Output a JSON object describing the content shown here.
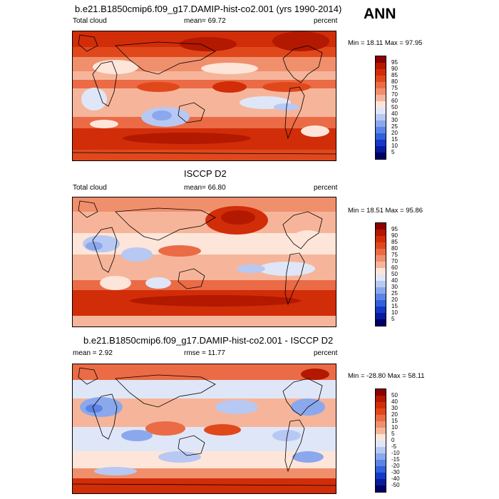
{
  "season": "ANN",
  "panels": [
    {
      "id": "model",
      "title": "b.e21.B1850cmip6.f09_g17.DAMIP-hist-co2.001 (yrs 1990-2014)",
      "left_label": "Total cloud",
      "center_label": "mean=  69.72",
      "right_label": "percent",
      "minmax": "Min =  18.11 Max =  97.95",
      "levels": [
        "95",
        "90",
        "85",
        "80",
        "75",
        "70",
        "60",
        "50",
        "40",
        "30",
        "25",
        "20",
        "15",
        "10",
        "5"
      ],
      "colors": [
        "#8b0000",
        "#b31800",
        "#d12d09",
        "#e0481c",
        "#ea6b45",
        "#f08f6c",
        "#f6b59a",
        "#fde5d9",
        "#dfe6f7",
        "#b7c8f2",
        "#8ba8ec",
        "#5c84e6",
        "#3360dc",
        "#1438c8",
        "#061c9c",
        "#000066"
      ]
    },
    {
      "id": "obs",
      "title": "ISCCP D2",
      "left_label": "Total cloud",
      "center_label": "mean=  66.80",
      "right_label": "percent",
      "minmax": "Min =  18.51 Max =  95.86",
      "levels": [
        "95",
        "90",
        "85",
        "80",
        "75",
        "70",
        "60",
        "50",
        "40",
        "30",
        "25",
        "20",
        "15",
        "10",
        "5"
      ],
      "colors": [
        "#8b0000",
        "#b31800",
        "#d12d09",
        "#e0481c",
        "#ea6b45",
        "#f08f6c",
        "#f6b59a",
        "#fde5d9",
        "#dfe6f7",
        "#b7c8f2",
        "#8ba8ec",
        "#5c84e6",
        "#3360dc",
        "#1438c8",
        "#061c9c",
        "#000066"
      ]
    },
    {
      "id": "diff",
      "title": "b.e21.B1850cmip6.f09_g17.DAMIP-hist-co2.001 - ISCCP D2",
      "left_label": "mean =  2.92",
      "center_label": "rmse =  11.77",
      "right_label": "percent",
      "minmax": "Min = -28.80 Max =  58.11",
      "levels": [
        "50",
        "40",
        "30",
        "20",
        "15",
        "10",
        "5",
        "0",
        "-5",
        "-10",
        "-15",
        "-20",
        "-30",
        "-40",
        "-50"
      ],
      "colors": [
        "#8b0000",
        "#b31800",
        "#d12d09",
        "#e0481c",
        "#ea6b45",
        "#f08f6c",
        "#f6b59a",
        "#fde5d9",
        "#dfe6f7",
        "#b7c8f2",
        "#8ba8ec",
        "#5c84e6",
        "#3360dc",
        "#1438c8",
        "#061c9c",
        "#000066"
      ]
    }
  ],
  "chart_data": [
    {
      "type": "heatmap",
      "title": "b.e21.B1850cmip6.f09_g17.DAMIP-hist-co2.001 (yrs 1990-2014)",
      "variable": "Total cloud",
      "units": "percent",
      "mean": 69.72,
      "min": 18.11,
      "max": 97.95,
      "contour_levels": [
        5,
        10,
        15,
        20,
        25,
        30,
        40,
        50,
        60,
        70,
        75,
        80,
        85,
        90,
        95
      ],
      "colormap": "blue-white-red"
    },
    {
      "type": "heatmap",
      "title": "ISCCP D2",
      "variable": "Total cloud",
      "units": "percent",
      "mean": 66.8,
      "min": 18.51,
      "max": 95.86,
      "contour_levels": [
        5,
        10,
        15,
        20,
        25,
        30,
        40,
        50,
        60,
        70,
        75,
        80,
        85,
        90,
        95
      ],
      "colormap": "blue-white-red"
    },
    {
      "type": "heatmap",
      "title": "b.e21.B1850cmip6.f09_g17.DAMIP-hist-co2.001 - ISCCP D2",
      "units": "percent",
      "mean": 2.92,
      "rmse": 11.77,
      "min": -28.8,
      "max": 58.11,
      "contour_levels": [
        -50,
        -40,
        -30,
        -20,
        -15,
        -10,
        -5,
        0,
        5,
        10,
        15,
        20,
        30,
        40,
        50
      ],
      "colormap": "blue-white-red"
    }
  ]
}
